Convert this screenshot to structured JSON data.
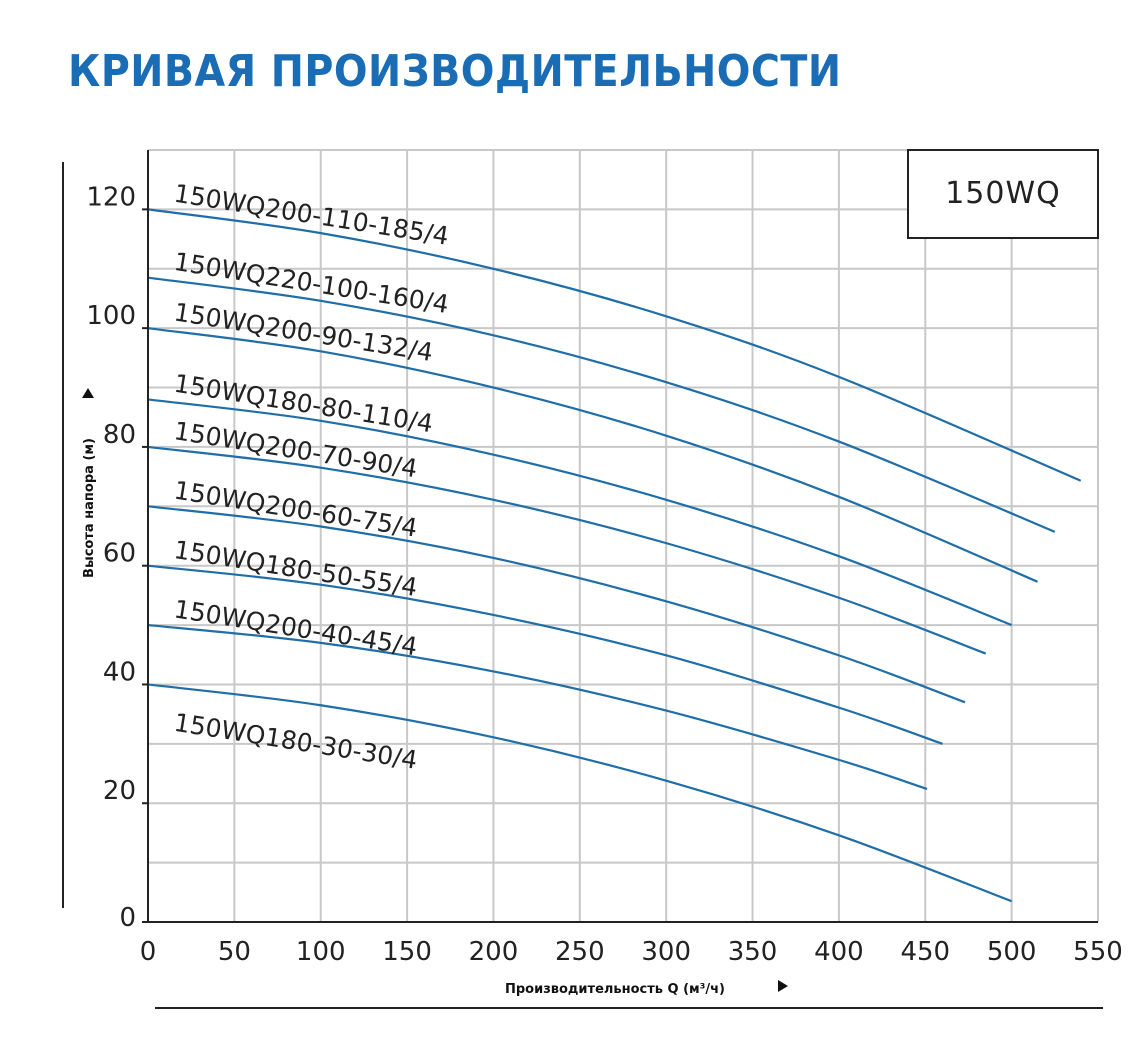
{
  "title": "КРИВАЯ ПРОИЗВОДИТЕЛЬНОСТИ",
  "chart_data": {
    "type": "line",
    "title": "КРИВАЯ ПРОИЗВОДИТЕЛЬНОСТИ",
    "series_box_label": "150WQ",
    "xlabel": "Производительность Q (м³/ч)",
    "ylabel": "Высота напора (м)",
    "xlim": [
      0,
      550
    ],
    "ylim": [
      0,
      130
    ],
    "xticks": [
      0,
      50,
      100,
      150,
      200,
      250,
      300,
      350,
      400,
      450,
      500,
      550
    ],
    "yticks": [
      0,
      20,
      40,
      60,
      80,
      100,
      120
    ],
    "grid": true,
    "line_color": "#1f6ea8",
    "title_color": "#1a6cb4",
    "series": [
      {
        "name": "150WQ200-110-185/4",
        "x": [
          0,
          100,
          200,
          300,
          400,
          540
        ],
        "y": [
          120,
          116.0,
          110.0,
          102.0,
          91.8,
          74.3
        ]
      },
      {
        "name": "150WQ220-100-160/4",
        "x": [
          0,
          100,
          200,
          300,
          400,
          525
        ],
        "y": [
          108.5,
          104.6,
          98.8,
          90.9,
          80.9,
          65.7
        ]
      },
      {
        "name": "150WQ200-90-132/4",
        "x": [
          0,
          100,
          200,
          300,
          400,
          515
        ],
        "y": [
          100,
          96.1,
          90.0,
          81.9,
          71.6,
          57.3
        ]
      },
      {
        "name": "150WQ180-80-110/4",
        "x": [
          0,
          100,
          200,
          300,
          400,
          500
        ],
        "y": [
          88,
          84.4,
          78.7,
          71.1,
          61.6,
          50
        ]
      },
      {
        "name": "150WQ200-70-90/4",
        "x": [
          0,
          100,
          200,
          300,
          400,
          485
        ],
        "y": [
          80,
          76.5,
          71.1,
          63.8,
          54.6,
          45.2
        ]
      },
      {
        "name": "150WQ200-60-75/4",
        "x": [
          0,
          100,
          200,
          300,
          400,
          473
        ],
        "y": [
          70,
          66.6,
          61.3,
          54.0,
          44.9,
          37
        ]
      },
      {
        "name": "150WQ180-50-55/4",
        "x": [
          0,
          100,
          200,
          300,
          400,
          460
        ],
        "y": [
          60,
          56.8,
          51.7,
          44.9,
          36.1,
          30
        ]
      },
      {
        "name": "150WQ200-40-45/4",
        "x": [
          0,
          100,
          200,
          300,
          400,
          451
        ],
        "y": [
          50,
          47.0,
          42.2,
          35.6,
          27.3,
          22.4
        ]
      },
      {
        "name": "150WQ180-30-30/4",
        "x": [
          0,
          100,
          200,
          300,
          400,
          500
        ],
        "y": [
          40,
          36.5,
          31.1,
          23.8,
          14.6,
          3.5
        ]
      }
    ]
  }
}
